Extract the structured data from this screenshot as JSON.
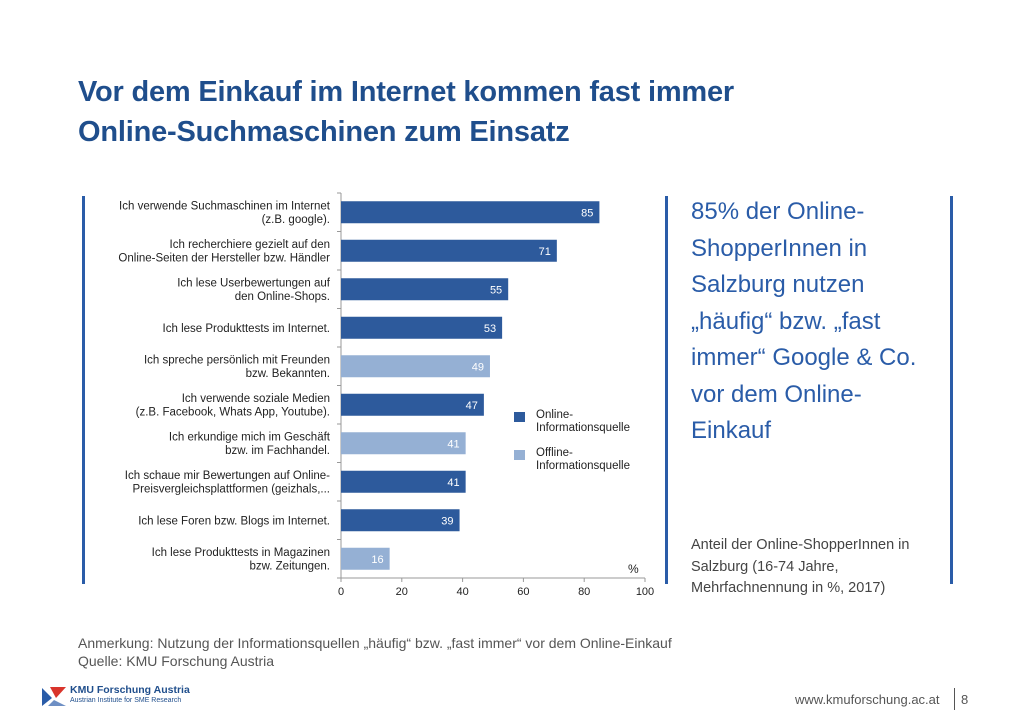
{
  "title": "Vor dem Einkauf im Internet kommen fast immer Online-Suchmaschinen zum Einsatz",
  "chart_data": {
    "type": "bar",
    "orientation": "horizontal",
    "categories": [
      [
        "Ich verwende Suchmaschinen im Internet",
        "(z.B. google)."
      ],
      [
        "Ich recherchiere gezielt auf den",
        "Online-Seiten der Hersteller bzw. Händler"
      ],
      [
        "Ich lese Userbewertungen auf",
        "den Online-Shops."
      ],
      [
        "Ich lese Produkttests im Internet."
      ],
      [
        "Ich spreche persönlich mit Freunden",
        "bzw. Bekannten."
      ],
      [
        "Ich verwende soziale Medien",
        "(z.B. Facebook, Whats App, Youtube)."
      ],
      [
        "Ich erkundige mich im Geschäft",
        "bzw. im Fachhandel."
      ],
      [
        "Ich schaue mir Bewertungen auf Online-",
        "Preisvergleichsplattformen (geizhals,..."
      ],
      [
        "Ich lese Foren bzw. Blogs im Internet."
      ],
      [
        "Ich lese Produkttests in Magazinen",
        "bzw. Zeitungen."
      ]
    ],
    "values": [
      85,
      71,
      55,
      53,
      49,
      47,
      41,
      41,
      39,
      16
    ],
    "source_type": [
      "online",
      "online",
      "online",
      "online",
      "offline",
      "online",
      "offline",
      "online",
      "online",
      "offline"
    ],
    "xlim": [
      0,
      100
    ],
    "xticks": [
      "0",
      "20",
      "40",
      "60",
      "80",
      "100"
    ],
    "unit_label": "%",
    "legend": [
      {
        "key": "online",
        "label": "Online-\nInformationsquelle",
        "color": "#2d5a9c"
      },
      {
        "key": "offline",
        "label": "Offline-\nInformationsquelle",
        "color": "#95b0d4"
      }
    ],
    "legend_position": "right"
  },
  "callout": "85% der Online-ShopperInnen in Salzburg nutzen „häufig“ bzw. „fast immer“  Google & Co. vor dem Online-Einkauf",
  "callout_sub": "Anteil der Online-ShopperInnen in Salzburg (16-74 Jahre, Mehrfachnennung in %, 2017)",
  "note": "Anmerkung: Nutzung der Informationsquellen „häufig“ bzw. „fast immer“ vor dem Online-Einkauf",
  "source": "Quelle: KMU Forschung Austria",
  "logo_line1": "KMU Forschung Austria",
  "logo_line2": "Austrian Institute for SME Research",
  "website": "www.kmuforschung.ac.at",
  "page_number": "8"
}
